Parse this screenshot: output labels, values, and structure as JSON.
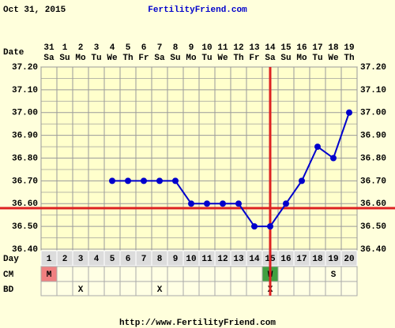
{
  "chart_data": {
    "type": "line",
    "date": "Oct 31, 2015",
    "title": "FertilityFriend.com",
    "footer": "http://www.FertilityFriend.com",
    "row_labels": {
      "date": "Date",
      "day": "Day",
      "cm": "CM",
      "bd": "BD"
    },
    "categories": [
      "31",
      "1",
      "2",
      "3",
      "4",
      "5",
      "6",
      "7",
      "8",
      "9",
      "10",
      "11",
      "12",
      "13",
      "14",
      "15",
      "16",
      "17",
      "18",
      "19"
    ],
    "weekdays": [
      "Sa",
      "Su",
      "Mo",
      "Tu",
      "We",
      "Th",
      "Fr",
      "Sa",
      "Su",
      "Mo",
      "Tu",
      "We",
      "Th",
      "Fr",
      "Sa",
      "Su",
      "Mo",
      "Tu",
      "We",
      "Th"
    ],
    "cycle_days": [
      1,
      2,
      3,
      4,
      5,
      6,
      7,
      8,
      9,
      10,
      11,
      12,
      13,
      14,
      15,
      16,
      17,
      18,
      19,
      20
    ],
    "cm": [
      "M",
      null,
      null,
      null,
      null,
      null,
      null,
      null,
      null,
      null,
      null,
      null,
      null,
      null,
      "W",
      null,
      null,
      null,
      "S",
      null
    ],
    "cm_colors": {
      "M": "#f08080",
      "W": "#40a040"
    },
    "bd": [
      null,
      null,
      "X",
      null,
      null,
      null,
      null,
      "X",
      null,
      null,
      null,
      null,
      null,
      null,
      "X",
      null,
      null,
      null,
      null,
      null
    ],
    "series": [
      {
        "name": "Temperature",
        "color": "#0000cc",
        "values": [
          null,
          null,
          null,
          null,
          36.7,
          36.7,
          36.7,
          36.7,
          36.7,
          36.6,
          36.6,
          36.6,
          36.6,
          36.5,
          36.5,
          36.6,
          36.7,
          36.85,
          36.8,
          37.0
        ]
      }
    ],
    "coverline": {
      "value": 36.58,
      "color": "#dd2222"
    },
    "ovulation_day": 15,
    "ylim": [
      36.4,
      37.2
    ],
    "yticks": [
      {
        "value": 36.4,
        "label": "36.40"
      },
      {
        "value": 36.5,
        "label": "36.50"
      },
      {
        "value": 36.6,
        "label": "36.60"
      },
      {
        "value": 36.7,
        "label": "36.70"
      },
      {
        "value": 36.8,
        "label": "36.80"
      },
      {
        "value": 36.9,
        "label": "36.90"
      },
      {
        "value": 37.0,
        "label": "37.00"
      },
      {
        "value": 37.1,
        "label": "37.10"
      },
      {
        "value": 37.2,
        "label": "37.20"
      }
    ],
    "grid": true
  }
}
